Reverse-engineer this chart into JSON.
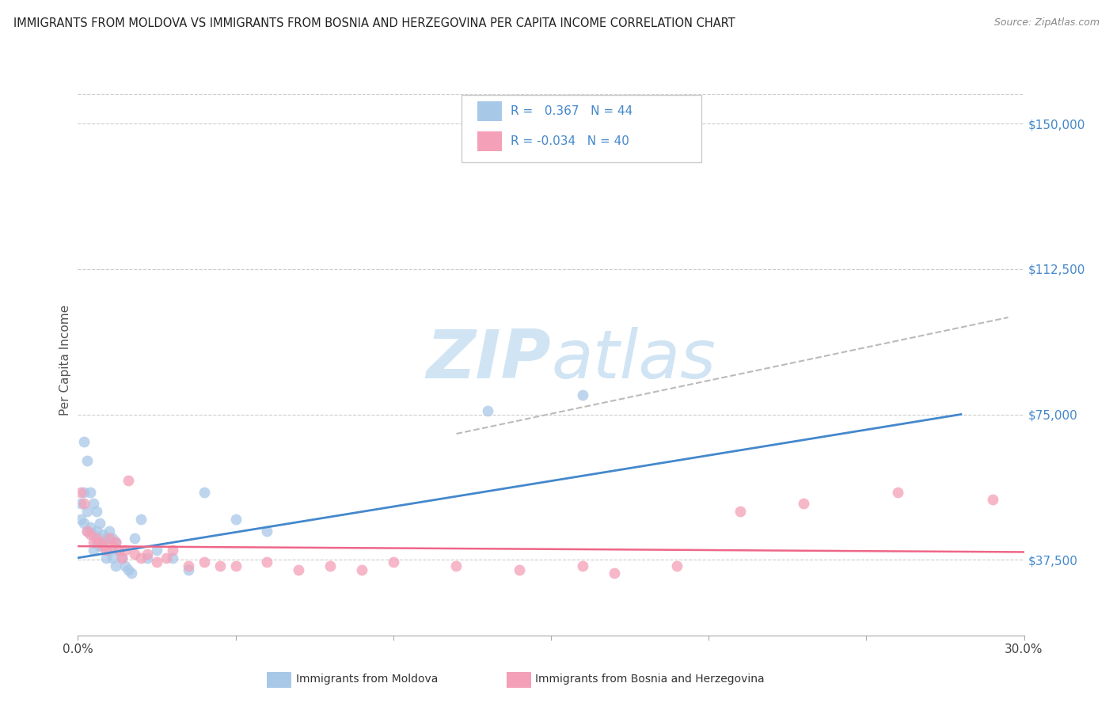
{
  "title": "IMMIGRANTS FROM MOLDOVA VS IMMIGRANTS FROM BOSNIA AND HERZEGOVINA PER CAPITA INCOME CORRELATION CHART",
  "source": "Source: ZipAtlas.com",
  "ylabel": "Per Capita Income",
  "yticks": [
    37500,
    75000,
    112500,
    150000
  ],
  "ytick_labels": [
    "$37,500",
    "$75,000",
    "$112,500",
    "$150,000"
  ],
  "xmin": 0.0,
  "xmax": 0.3,
  "ymin": 18000,
  "ymax": 160000,
  "color_blue": "#a8c8e8",
  "color_pink": "#f4a0b8",
  "color_blue_line": "#4488cc",
  "color_pink_line": "#ee6688",
  "color_dashed_line": "#bbbbbb",
  "watermark_color": "#d0e4f4",
  "scatter_blue_x": [
    0.001,
    0.001,
    0.002,
    0.002,
    0.002,
    0.003,
    0.003,
    0.003,
    0.004,
    0.004,
    0.005,
    0.005,
    0.005,
    0.006,
    0.006,
    0.006,
    0.007,
    0.007,
    0.008,
    0.008,
    0.009,
    0.009,
    0.01,
    0.01,
    0.011,
    0.011,
    0.012,
    0.012,
    0.013,
    0.014,
    0.015,
    0.016,
    0.017,
    0.018,
    0.02,
    0.022,
    0.025,
    0.03,
    0.035,
    0.04,
    0.05,
    0.06,
    0.13,
    0.16
  ],
  "scatter_blue_y": [
    52000,
    48000,
    68000,
    55000,
    47000,
    63000,
    50000,
    45000,
    55000,
    46000,
    52000,
    44000,
    40000,
    50000,
    45000,
    42000,
    47000,
    41000,
    44000,
    42000,
    43000,
    38000,
    45000,
    40000,
    43000,
    38000,
    42000,
    36000,
    40000,
    38000,
    36000,
    35000,
    34000,
    43000,
    48000,
    38000,
    40000,
    38000,
    35000,
    55000,
    48000,
    45000,
    76000,
    80000
  ],
  "scatter_pink_x": [
    0.001,
    0.002,
    0.003,
    0.004,
    0.005,
    0.006,
    0.007,
    0.008,
    0.009,
    0.01,
    0.011,
    0.012,
    0.013,
    0.014,
    0.015,
    0.016,
    0.018,
    0.02,
    0.022,
    0.025,
    0.028,
    0.03,
    0.035,
    0.04,
    0.045,
    0.05,
    0.06,
    0.07,
    0.08,
    0.09,
    0.1,
    0.12,
    0.14,
    0.16,
    0.17,
    0.19,
    0.21,
    0.23,
    0.26,
    0.29
  ],
  "scatter_pink_y": [
    55000,
    52000,
    45000,
    44000,
    42000,
    43000,
    42000,
    41000,
    40000,
    43000,
    41000,
    42000,
    40000,
    38000,
    40000,
    58000,
    39000,
    38000,
    39000,
    37000,
    38000,
    40000,
    36000,
    37000,
    36000,
    36000,
    37000,
    35000,
    36000,
    35000,
    37000,
    36000,
    35000,
    36000,
    34000,
    36000,
    50000,
    52000,
    55000,
    53000
  ],
  "blue_line_x": [
    0.0,
    0.28
  ],
  "blue_line_y": [
    38000,
    75000
  ],
  "pink_line_x": [
    0.0,
    0.3
  ],
  "pink_line_y": [
    41000,
    39500
  ],
  "dashed_line_x": [
    0.12,
    0.295
  ],
  "dashed_line_y": [
    70000,
    100000
  ]
}
